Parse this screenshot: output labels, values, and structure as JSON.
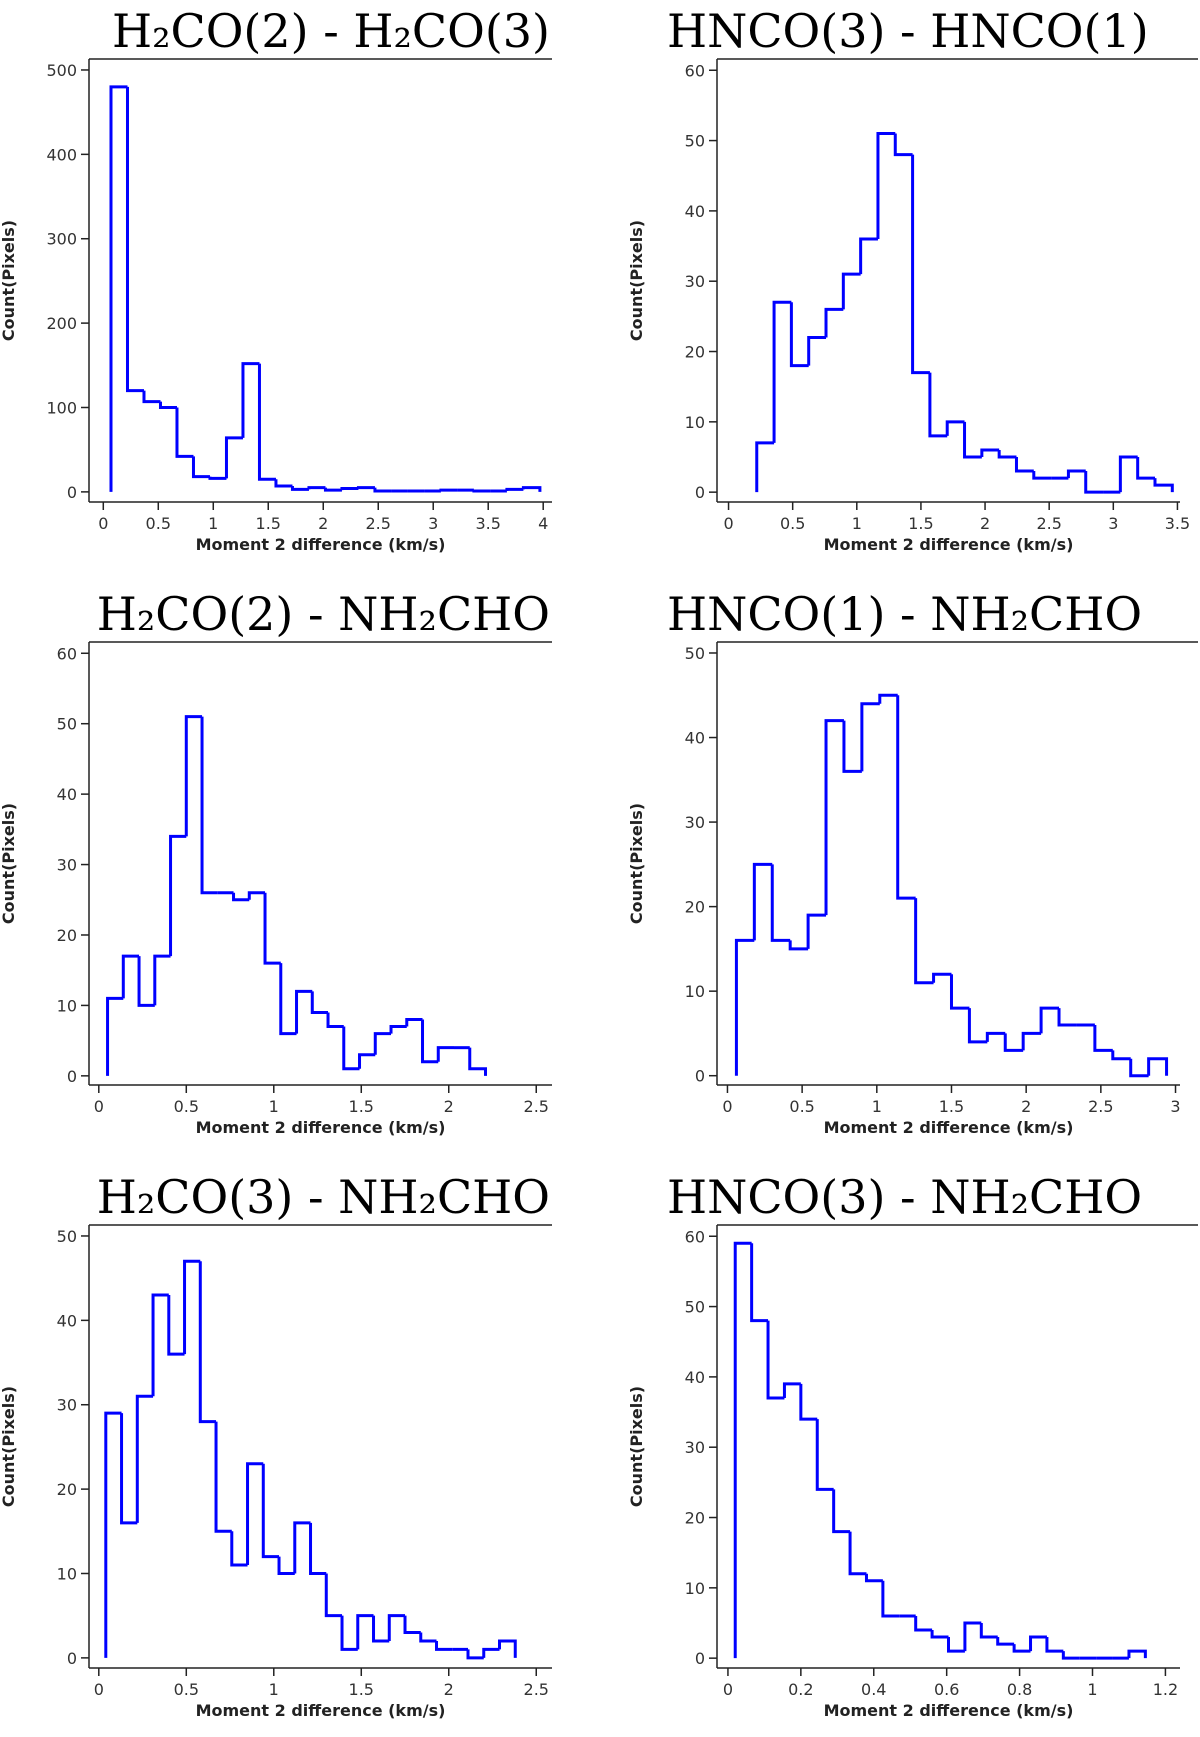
{
  "chart_data": [
    {
      "type": "histogram",
      "title": "H₂CO(2) - H₂CO(3)",
      "xlabel": "Moment 2 difference (km/s)",
      "ylabel": "Count(Pixels)",
      "color": "#0000ff",
      "bins": [
        0.07,
        0.22,
        0.37,
        0.52,
        0.67,
        0.82,
        0.97,
        1.12,
        1.27,
        1.42,
        1.57,
        1.72,
        1.87,
        2.02,
        2.17,
        2.32,
        2.47,
        2.62,
        2.77,
        2.92,
        3.07,
        3.22,
        3.37,
        3.52,
        3.67,
        3.82,
        3.97
      ],
      "values": [
        480,
        120,
        107,
        100,
        42,
        18,
        16,
        64,
        152,
        15,
        7,
        3,
        5,
        2,
        4,
        5,
        1,
        1,
        1,
        1,
        2,
        2,
        1,
        1,
        3,
        5
      ],
      "xlim": [
        -0.13,
        4.08
      ],
      "ylim": [
        -12,
        513
      ],
      "xticks": [
        0,
        0.5,
        1,
        1.5,
        2,
        2.5,
        3,
        3.5,
        4
      ],
      "yticks": [
        0,
        100,
        200,
        300,
        400,
        500
      ]
    },
    {
      "type": "histogram",
      "title": "HNCO(3) - HNCO(1)",
      "xlabel": "Moment 2 difference (km/s)",
      "ylabel": "Count(Pixels)",
      "color": "#0000ff",
      "bins": [
        0.22,
        0.355,
        0.49,
        0.625,
        0.76,
        0.895,
        1.03,
        1.165,
        1.3,
        1.435,
        1.57,
        1.705,
        1.84,
        1.975,
        2.11,
        2.245,
        2.38,
        2.515,
        2.65,
        2.785,
        2.92,
        3.055,
        3.19,
        3.325,
        3.46
      ],
      "values": [
        7,
        27,
        18,
        22,
        26,
        31,
        36,
        51,
        48,
        17,
        8,
        10,
        5,
        6,
        5,
        3,
        2,
        2,
        3,
        0,
        0,
        5,
        2,
        1
      ],
      "xlim": [
        -0.09,
        3.52
      ],
      "ylim": [
        -1.4,
        61.6
      ],
      "xticks": [
        0,
        0.5,
        1,
        1.5,
        2,
        2.5,
        3,
        3.5
      ],
      "yticks": [
        0,
        10,
        20,
        30,
        40,
        50,
        60
      ]
    },
    {
      "type": "histogram",
      "title": "H₂CO(2) - NH₂CHO",
      "xlabel": "Moment 2 difference (km/s)",
      "ylabel": "Count(Pixels)",
      "color": "#0000ff",
      "bins": [
        0.05,
        0.14,
        0.23,
        0.32,
        0.41,
        0.5,
        0.59,
        0.68,
        0.77,
        0.86,
        0.95,
        1.04,
        1.13,
        1.22,
        1.31,
        1.4,
        1.49,
        1.58,
        1.67,
        1.76,
        1.85,
        1.94,
        2.03,
        2.12,
        2.21
      ],
      "values": [
        11,
        17,
        10,
        17,
        34,
        51,
        26,
        26,
        25,
        26,
        16,
        6,
        12,
        9,
        7,
        1,
        3,
        6,
        7,
        8,
        2,
        4,
        4,
        1
      ],
      "xlim": [
        -0.056,
        2.59
      ],
      "ylim": [
        -1.3,
        61.6
      ],
      "xticks": [
        0,
        0.5,
        1,
        1.5,
        2,
        2.5
      ],
      "yticks": [
        0,
        10,
        20,
        30,
        40,
        50,
        60
      ]
    },
    {
      "type": "histogram",
      "title": "HNCO(1) - NH₂CHO",
      "xlabel": "Moment 2 difference (km/s)",
      "ylabel": "Count(Pixels)",
      "color": "#0000ff",
      "bins": [
        0.06,
        0.18,
        0.3,
        0.42,
        0.54,
        0.66,
        0.78,
        0.9,
        1.02,
        1.14,
        1.26,
        1.38,
        1.5,
        1.62,
        1.74,
        1.86,
        1.98,
        2.1,
        2.22,
        2.34,
        2.46,
        2.58,
        2.7,
        2.82,
        2.94
      ],
      "values": [
        16,
        25,
        16,
        15,
        19,
        42,
        36,
        44,
        45,
        21,
        11,
        12,
        8,
        4,
        5,
        3,
        5,
        8,
        6,
        6,
        3,
        2,
        0,
        2
      ],
      "xlim": [
        -0.07,
        3.03
      ],
      "ylim": [
        -1.1,
        51.3
      ],
      "xticks": [
        0,
        0.5,
        1,
        1.5,
        2,
        2.5,
        3
      ],
      "yticks": [
        0,
        10,
        20,
        30,
        40,
        50
      ]
    },
    {
      "type": "histogram",
      "title": "H₂CO(3) - NH₂CHO",
      "xlabel": "Moment 2 difference (km/s)",
      "ylabel": "Count(Pixels)",
      "color": "#0000ff",
      "bins": [
        0.04,
        0.13,
        0.22,
        0.31,
        0.4,
        0.49,
        0.58,
        0.67,
        0.76,
        0.85,
        0.94,
        1.03,
        1.12,
        1.21,
        1.3,
        1.39,
        1.48,
        1.57,
        1.66,
        1.75,
        1.84,
        1.93,
        2.02,
        2.11,
        2.2,
        2.29,
        2.38
      ],
      "values": [
        29,
        16,
        31,
        43,
        36,
        47,
        28,
        15,
        11,
        23,
        12,
        10,
        16,
        10,
        5,
        1,
        5,
        2,
        5,
        3,
        2,
        1,
        1,
        0,
        1,
        2
      ],
      "xlim": [
        -0.056,
        2.59
      ],
      "ylim": [
        -1.2,
        51.3
      ],
      "xticks": [
        0,
        0.5,
        1,
        1.5,
        2,
        2.5
      ],
      "yticks": [
        0,
        10,
        20,
        30,
        40,
        50
      ]
    },
    {
      "type": "histogram",
      "title": "HNCO(3) - NH₂CHO",
      "xlabel": "Moment 2 difference (km/s)",
      "ylabel": "Count(Pixels)",
      "color": "#0000ff",
      "bins": [
        0.02,
        0.065,
        0.11,
        0.155,
        0.2,
        0.245,
        0.29,
        0.335,
        0.38,
        0.425,
        0.47,
        0.515,
        0.56,
        0.605,
        0.65,
        0.695,
        0.74,
        0.785,
        0.83,
        0.875,
        0.92,
        0.965,
        1.01,
        1.055,
        1.1,
        1.145
      ],
      "values": [
        59,
        48,
        37,
        39,
        34,
        24,
        18,
        12,
        11,
        6,
        6,
        4,
        3,
        1,
        5,
        3,
        2,
        1,
        3,
        1,
        0,
        0,
        0,
        0,
        1
      ],
      "xlim": [
        -0.03,
        1.24
      ],
      "ylim": [
        -1.4,
        61.6
      ],
      "xticks": [
        0,
        0.2,
        0.4,
        0.6,
        0.8,
        1,
        1.2
      ],
      "yticks": [
        0,
        10,
        20,
        30,
        40,
        50,
        60
      ]
    }
  ]
}
